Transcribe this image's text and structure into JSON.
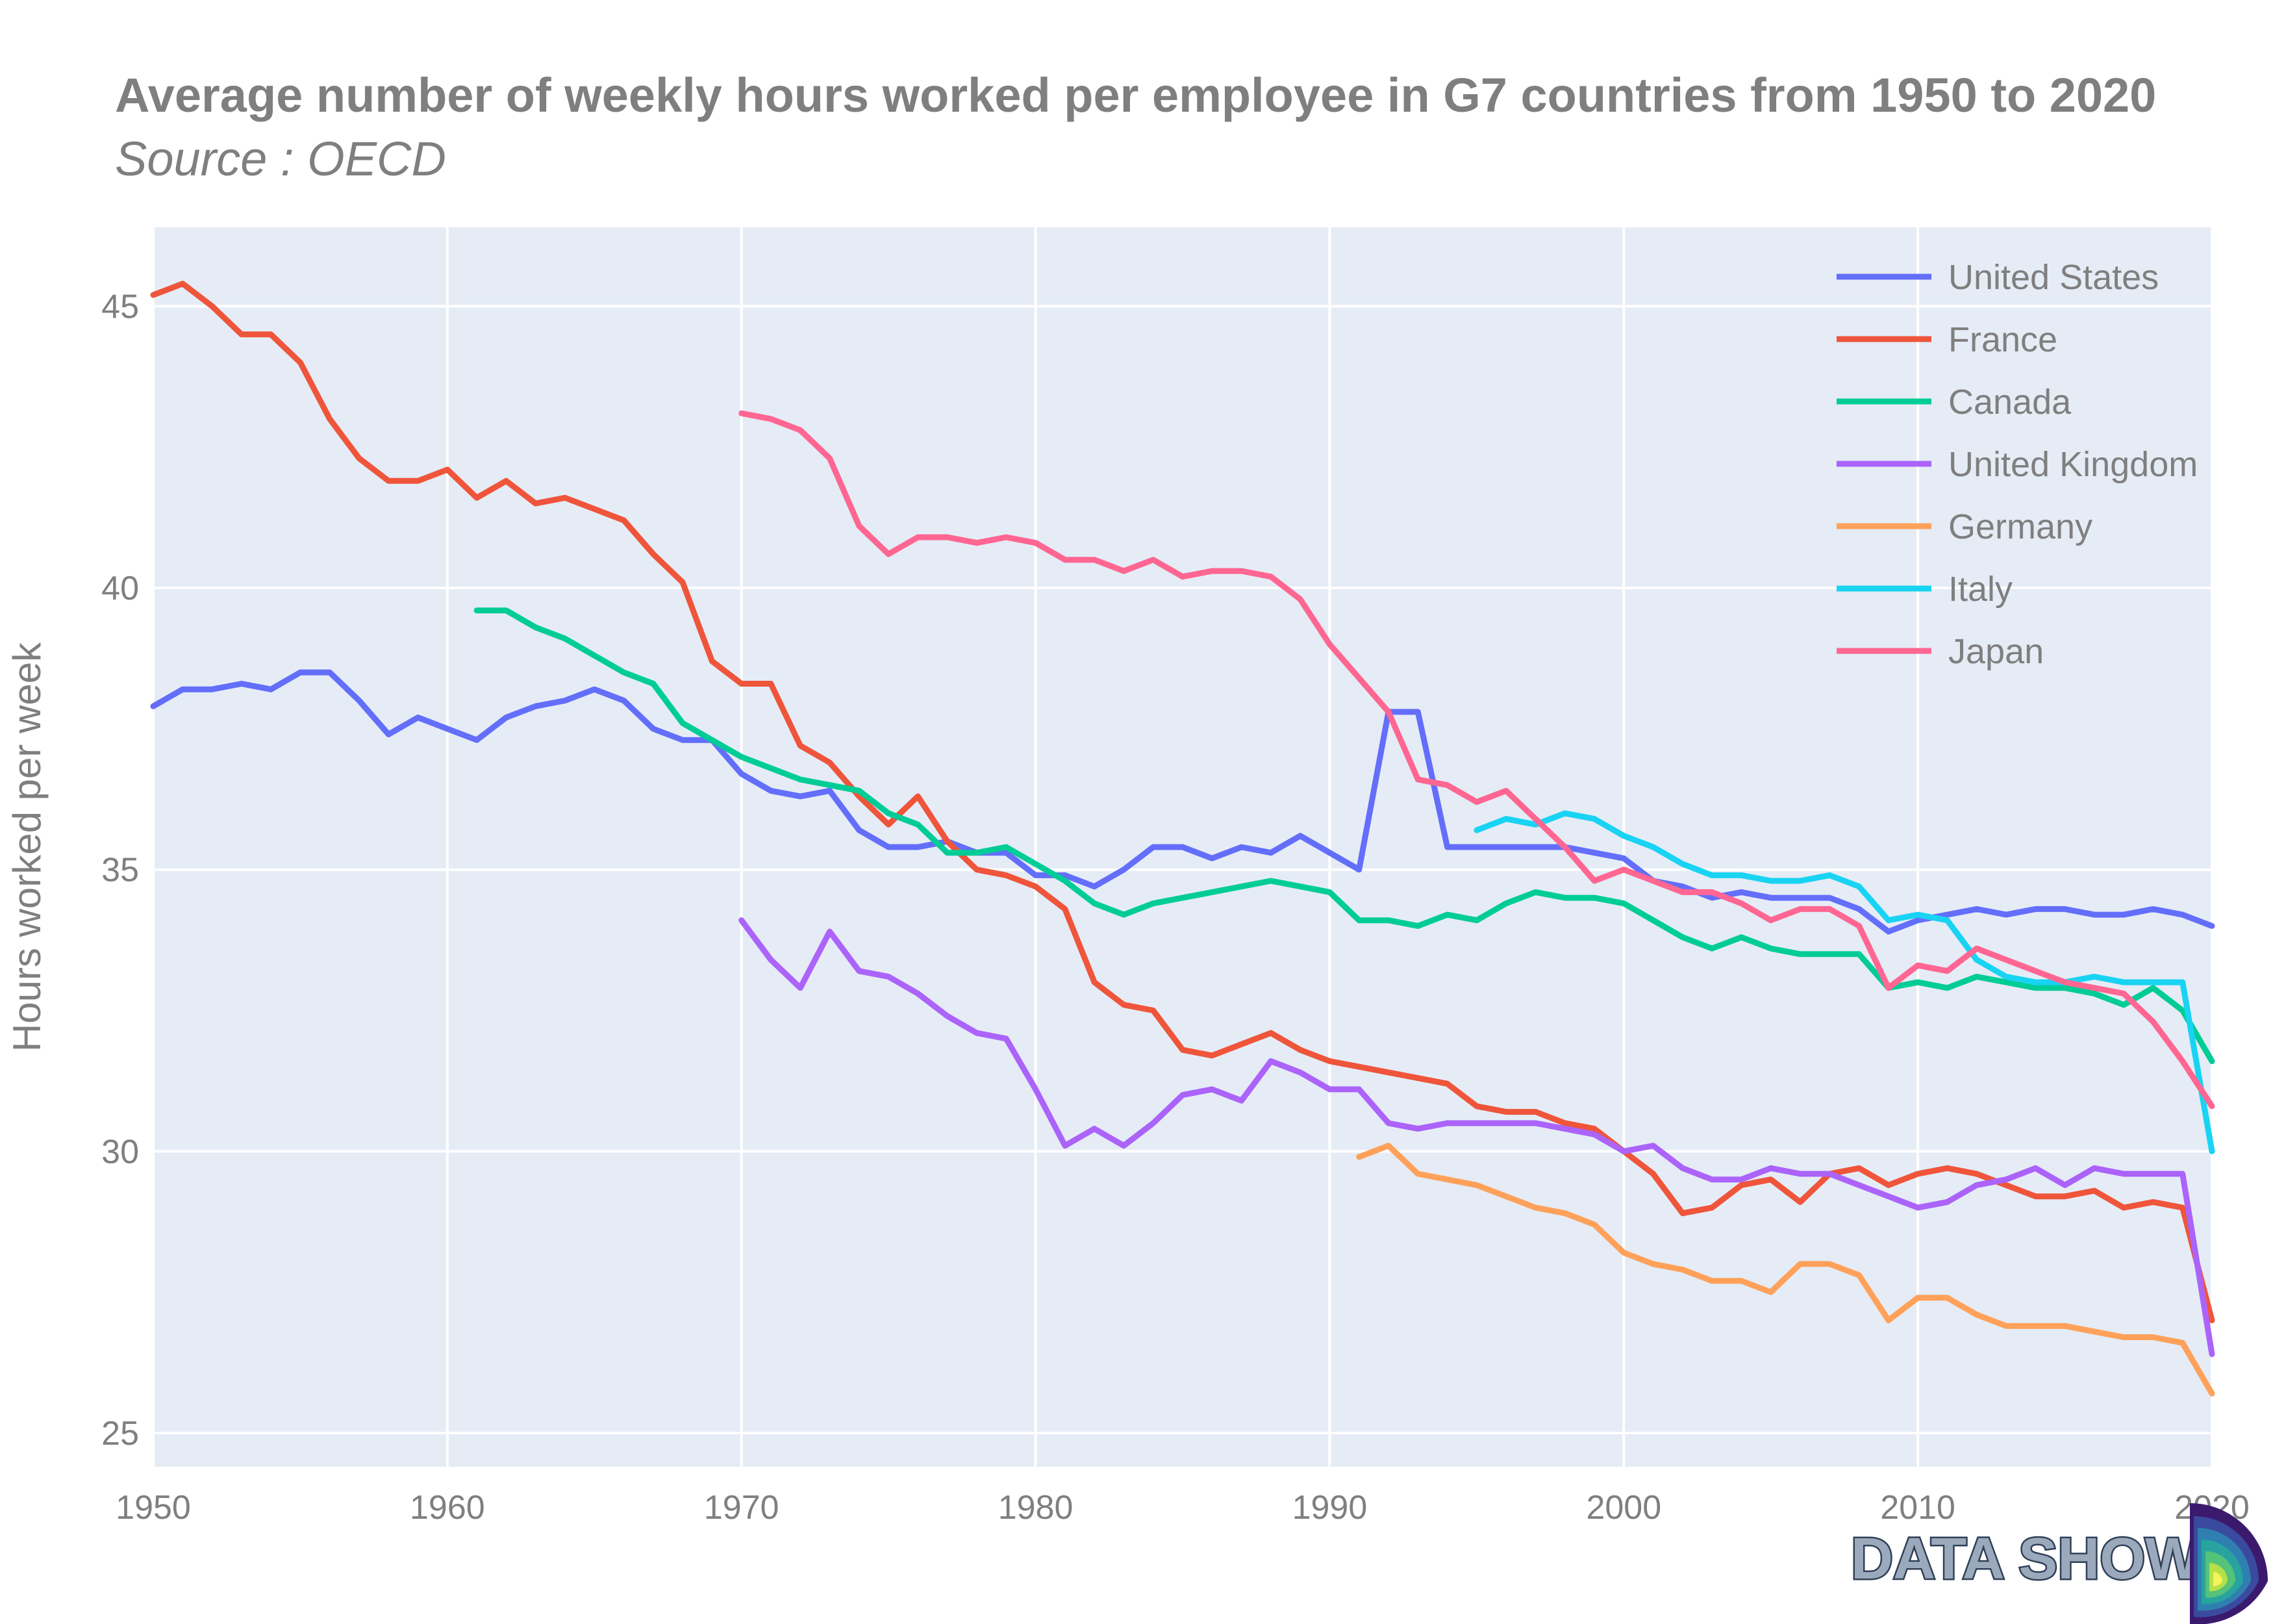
{
  "chart_data": {
    "type": "line",
    "title": "Average number of weekly hours worked per employee in G7 countries from 1950 to 2020",
    "subtitle": "Source : OECD",
    "xlabel": "",
    "ylabel": "Hours worked per week",
    "xlim": [
      1950,
      2020
    ],
    "ylim": [
      24.4,
      46.4
    ],
    "x_ticks": [
      1950,
      1960,
      1970,
      1980,
      1990,
      2000,
      2010,
      2020
    ],
    "y_ticks": [
      25,
      30,
      35,
      40,
      45
    ],
    "grid": true,
    "legend_position": "top-right",
    "background_color": "#e5ecf6",
    "series": [
      {
        "name": "United States",
        "color": "#636efa",
        "start_year": 1950,
        "values": [
          37.9,
          38.2,
          38.2,
          38.3,
          38.2,
          38.5,
          38.5,
          38.0,
          37.4,
          37.7,
          37.5,
          37.3,
          37.7,
          37.9,
          38.0,
          38.2,
          38.0,
          37.5,
          37.3,
          37.3,
          36.7,
          36.4,
          36.3,
          36.4,
          35.7,
          35.4,
          35.4,
          35.5,
          35.3,
          35.3,
          34.9,
          34.9,
          34.7,
          35.0,
          35.4,
          35.4,
          35.2,
          35.4,
          35.3,
          35.6,
          35.3,
          35.0,
          37.8,
          37.8,
          35.4,
          35.4,
          35.4,
          35.4,
          35.4,
          35.3,
          35.2,
          34.8,
          34.7,
          34.5,
          34.6,
          34.5,
          34.5,
          34.5,
          34.3,
          33.9,
          34.1,
          34.2,
          34.3,
          34.2,
          34.3,
          34.3,
          34.2,
          34.2,
          34.3,
          34.2,
          34.0
        ]
      },
      {
        "name": "France",
        "color": "#ef553b",
        "start_year": 1950,
        "values": [
          45.2,
          45.4,
          45.0,
          44.5,
          44.5,
          44.0,
          43.0,
          42.3,
          41.9,
          41.9,
          42.1,
          41.6,
          41.9,
          41.5,
          41.6,
          41.4,
          41.2,
          40.6,
          40.1,
          38.7,
          38.3,
          38.3,
          37.2,
          36.9,
          36.3,
          35.8,
          36.3,
          35.5,
          35.0,
          34.9,
          34.7,
          34.3,
          33.0,
          32.6,
          32.5,
          31.8,
          31.7,
          31.9,
          32.1,
          31.8,
          31.6,
          31.5,
          31.4,
          31.3,
          31.2,
          30.8,
          30.7,
          30.7,
          30.5,
          30.4,
          30.0,
          29.6,
          28.9,
          29.0,
          29.4,
          29.5,
          29.1,
          29.6,
          29.7,
          29.4,
          29.6,
          29.7,
          29.6,
          29.4,
          29.2,
          29.2,
          29.3,
          29.0,
          29.1,
          29.0,
          27.0
        ]
      },
      {
        "name": "Canada",
        "color": "#00cc96",
        "start_year": 1961,
        "values": [
          39.6,
          39.6,
          39.3,
          39.1,
          38.8,
          38.5,
          38.3,
          37.6,
          37.3,
          37.0,
          36.8,
          36.6,
          36.5,
          36.4,
          36.0,
          35.8,
          35.3,
          35.3,
          35.4,
          35.1,
          34.8,
          34.4,
          34.2,
          34.4,
          34.5,
          34.6,
          34.7,
          34.8,
          34.7,
          34.6,
          34.1,
          34.1,
          34.0,
          34.2,
          34.1,
          34.4,
          34.6,
          34.5,
          34.5,
          34.4,
          34.1,
          33.8,
          33.6,
          33.8,
          33.6,
          33.5,
          33.5,
          33.5,
          32.9,
          33.0,
          32.9,
          33.1,
          33.0,
          32.9,
          32.9,
          32.8,
          32.6,
          32.9,
          32.5,
          31.6
        ]
      },
      {
        "name": "United Kingdom",
        "color": "#ab63fa",
        "start_year": 1970,
        "values": [
          34.1,
          33.4,
          32.9,
          33.9,
          33.2,
          33.1,
          32.8,
          32.4,
          32.1,
          32.0,
          31.1,
          30.1,
          30.4,
          30.1,
          30.5,
          31.0,
          31.1,
          30.9,
          31.6,
          31.4,
          31.1,
          31.1,
          30.5,
          30.4,
          30.5,
          30.5,
          30.5,
          30.5,
          30.4,
          30.3,
          30.0,
          30.1,
          29.7,
          29.5,
          29.5,
          29.7,
          29.6,
          29.6,
          29.4,
          29.2,
          29.0,
          29.1,
          29.4,
          29.5,
          29.7,
          29.4,
          29.7,
          29.6,
          29.6,
          29.6,
          26.4
        ]
      },
      {
        "name": "Germany",
        "color": "#ffa15a",
        "start_year": 1991,
        "values": [
          29.9,
          30.1,
          29.6,
          29.5,
          29.4,
          29.2,
          29.0,
          28.9,
          28.7,
          28.2,
          28.0,
          27.9,
          27.7,
          27.7,
          27.5,
          28.0,
          28.0,
          27.8,
          27.0,
          27.4,
          27.4,
          27.1,
          26.9,
          26.9,
          26.9,
          26.8,
          26.7,
          26.7,
          26.6,
          25.7
        ]
      },
      {
        "name": "Italy",
        "color": "#19d3f3",
        "start_year": 1995,
        "values": [
          35.7,
          35.9,
          35.8,
          36.0,
          35.9,
          35.6,
          35.4,
          35.1,
          34.9,
          34.9,
          34.8,
          34.8,
          34.9,
          34.7,
          34.1,
          34.2,
          34.1,
          33.4,
          33.1,
          33.0,
          33.0,
          33.1,
          33.0,
          33.0,
          33.0,
          30.0
        ]
      },
      {
        "name": "Japan",
        "color": "#ff6692",
        "start_year": 1970,
        "values": [
          43.1,
          43.0,
          42.8,
          42.3,
          41.1,
          40.6,
          40.9,
          40.9,
          40.8,
          40.9,
          40.8,
          40.5,
          40.5,
          40.3,
          40.5,
          40.2,
          40.3,
          40.3,
          40.2,
          39.8,
          39.0,
          38.4,
          37.8,
          36.6,
          36.5,
          36.2,
          36.4,
          35.9,
          35.4,
          34.8,
          35.0,
          34.8,
          34.6,
          34.6,
          34.4,
          34.1,
          34.3,
          34.3,
          34.0,
          32.9,
          33.3,
          33.2,
          33.6,
          33.4,
          33.2,
          33.0,
          32.9,
          32.8,
          32.3,
          31.6,
          30.8
        ]
      }
    ]
  },
  "brand": {
    "label": "DATA SHOW"
  }
}
